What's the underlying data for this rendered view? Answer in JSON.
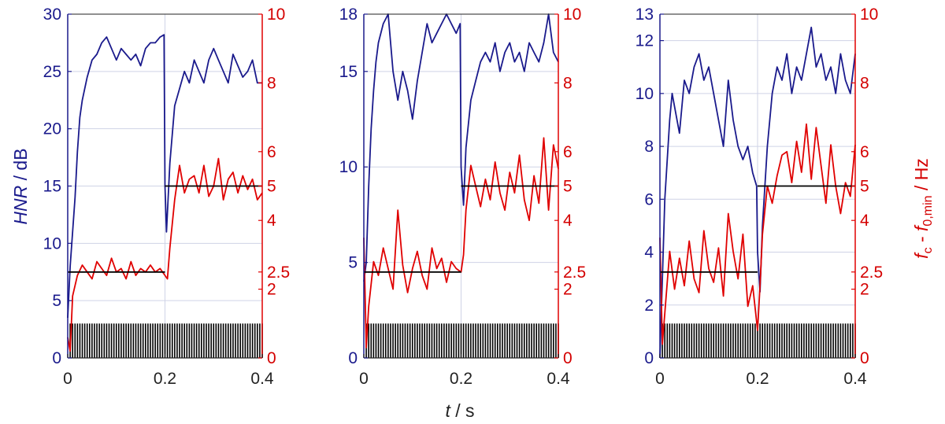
{
  "colors": {
    "hnr": "#1a1a8c",
    "fc": "#e00000",
    "target": "#000000",
    "pulse": "#000000",
    "grid": "#cfd3e6"
  },
  "labels": {
    "ylabel_left": "HNR / dB",
    "ylabel_left_italic": "HNR",
    "ylabel_left_unit": " / dB",
    "ylabel_right_f": "f",
    "ylabel_right_c": "c",
    "ylabel_right_dash": " - ",
    "ylabel_right_f0": "f",
    "ylabel_right_sub": "0,min",
    "ylabel_right_unit": " / Hz",
    "xlabel_italic": "t",
    "xlabel_unit": " / s"
  },
  "chart_data": [
    {
      "type": "line",
      "xlim": [
        0,
        0.4
      ],
      "xticks": [
        "0",
        "0.2",
        "0.4"
      ],
      "ylim_left": [
        0,
        30
      ],
      "yticks_left": [
        "0",
        "5",
        "10",
        "15",
        "20",
        "25",
        "30"
      ],
      "ylim_right": [
        0,
        10
      ],
      "yticks_right": [
        "0",
        "2",
        "2.5",
        "4",
        "5",
        "6",
        "8",
        "10"
      ],
      "grid": true,
      "series": [
        {
          "axis": "left",
          "x": [
            0,
            0.005,
            0.01,
            0.015,
            0.02,
            0.025,
            0.03,
            0.04,
            0.05,
            0.06,
            0.07,
            0.08,
            0.09,
            0.1,
            0.11,
            0.12,
            0.13,
            0.14,
            0.15,
            0.16,
            0.17,
            0.18,
            0.19,
            0.198,
            0.2,
            0.203,
            0.21,
            0.22,
            0.23,
            0.24,
            0.25,
            0.26,
            0.27,
            0.28,
            0.29,
            0.3,
            0.31,
            0.32,
            0.33,
            0.34,
            0.35,
            0.36,
            0.37,
            0.38,
            0.39,
            0.4
          ],
          "y": [
            3.5,
            8,
            11,
            14,
            18,
            21,
            22.5,
            24.5,
            26,
            26.5,
            27.5,
            28,
            27,
            26,
            27,
            26.5,
            26,
            26.5,
            25.5,
            27,
            27.5,
            27.5,
            28,
            28.2,
            15,
            11,
            17,
            22,
            23.5,
            25,
            24,
            26,
            25,
            24,
            26,
            27,
            26,
            25,
            24,
            26.5,
            25.5,
            24.5,
            25,
            26,
            24,
            24
          ]
        },
        {
          "axis": "right",
          "x": [
            0,
            0.005,
            0.01,
            0.02,
            0.03,
            0.04,
            0.05,
            0.06,
            0.07,
            0.08,
            0.09,
            0.1,
            0.11,
            0.12,
            0.13,
            0.14,
            0.15,
            0.16,
            0.17,
            0.18,
            0.19,
            0.2,
            0.205,
            0.21,
            0.22,
            0.23,
            0.24,
            0.25,
            0.26,
            0.27,
            0.28,
            0.29,
            0.3,
            0.31,
            0.32,
            0.33,
            0.34,
            0.35,
            0.36,
            0.37,
            0.38,
            0.39,
            0.4
          ],
          "y": [
            0.6,
            0.2,
            1.8,
            2.4,
            2.7,
            2.5,
            2.3,
            2.8,
            2.6,
            2.4,
            2.9,
            2.5,
            2.6,
            2.3,
            2.8,
            2.4,
            2.6,
            2.5,
            2.7,
            2.5,
            2.6,
            2.4,
            2.3,
            3.2,
            4.6,
            5.6,
            4.8,
            5.2,
            5.3,
            4.8,
            5.6,
            4.7,
            5.0,
            5.8,
            4.6,
            5.2,
            5.4,
            4.8,
            5.3,
            4.9,
            5.2,
            4.6,
            4.8
          ]
        },
        {
          "axis": "right",
          "x": [
            0.0,
            0.2
          ],
          "y": [
            2.5,
            2.5
          ]
        },
        {
          "axis": "right",
          "x": [
            0.2,
            0.4
          ],
          "y": [
            5,
            5
          ]
        }
      ],
      "pulse_train": {
        "x_start": 0.005,
        "x_end": 0.4,
        "period": 0.005,
        "height_right": 1
      }
    },
    {
      "type": "line",
      "xlim": [
        0,
        0.4
      ],
      "xticks": [
        "0",
        "0.2",
        "0.4"
      ],
      "ylim_left": [
        0,
        18
      ],
      "yticks_left": [
        "0",
        "5",
        "10",
        "15",
        "18"
      ],
      "ylim_right": [
        0,
        10
      ],
      "yticks_right": [
        "0",
        "2",
        "2.5",
        "4",
        "5",
        "6",
        "8",
        "10"
      ],
      "grid": true,
      "series": [
        {
          "axis": "left",
          "x": [
            0,
            0.005,
            0.01,
            0.015,
            0.02,
            0.025,
            0.03,
            0.04,
            0.05,
            0.06,
            0.07,
            0.08,
            0.09,
            0.1,
            0.11,
            0.12,
            0.13,
            0.14,
            0.15,
            0.16,
            0.17,
            0.18,
            0.19,
            0.198,
            0.2,
            0.205,
            0.21,
            0.22,
            0.23,
            0.24,
            0.25,
            0.26,
            0.27,
            0.28,
            0.29,
            0.3,
            0.31,
            0.32,
            0.33,
            0.34,
            0.35,
            0.36,
            0.37,
            0.38,
            0.39,
            0.4
          ],
          "y": [
            4,
            5,
            9,
            12,
            14,
            15.5,
            16.5,
            17.5,
            18,
            15,
            13.5,
            15,
            14,
            12.5,
            14.5,
            16,
            17.5,
            16.5,
            17,
            17.5,
            18,
            17.5,
            17,
            17.5,
            10,
            8,
            11,
            13.5,
            14.5,
            15.5,
            16,
            15.5,
            16.5,
            15,
            16,
            16.5,
            15.5,
            16,
            15,
            16.5,
            16,
            15.5,
            16.5,
            18,
            16,
            15.5
          ]
        },
        {
          "axis": "right",
          "x": [
            0,
            0.005,
            0.01,
            0.02,
            0.03,
            0.04,
            0.05,
            0.06,
            0.07,
            0.08,
            0.09,
            0.1,
            0.11,
            0.12,
            0.13,
            0.14,
            0.15,
            0.16,
            0.17,
            0.18,
            0.19,
            0.2,
            0.205,
            0.21,
            0.22,
            0.23,
            0.24,
            0.25,
            0.26,
            0.27,
            0.28,
            0.29,
            0.3,
            0.31,
            0.32,
            0.33,
            0.34,
            0.35,
            0.36,
            0.37,
            0.38,
            0.39,
            0.4
          ],
          "y": [
            3.5,
            0.3,
            1.5,
            2.8,
            2.4,
            3.2,
            2.6,
            2.0,
            4.3,
            2.7,
            1.9,
            2.6,
            3.1,
            2.4,
            2.0,
            3.2,
            2.6,
            2.9,
            2.2,
            2.8,
            2.6,
            2.5,
            3.0,
            4.3,
            5.6,
            5.0,
            4.4,
            5.2,
            4.6,
            5.7,
            4.8,
            4.3,
            5.4,
            4.8,
            5.9,
            4.6,
            4.0,
            5.3,
            4.5,
            6.4,
            4.3,
            6.2,
            5.5
          ]
        },
        {
          "axis": "right",
          "x": [
            0.0,
            0.2
          ],
          "y": [
            2.5,
            2.5
          ]
        },
        {
          "axis": "right",
          "x": [
            0.2,
            0.4
          ],
          "y": [
            5,
            5
          ]
        }
      ],
      "pulse_train": {
        "x_start": 0.005,
        "x_end": 0.4,
        "period": 0.005,
        "height_right": 1
      }
    },
    {
      "type": "line",
      "xlim": [
        0,
        0.4
      ],
      "xticks": [
        "0",
        "0.2",
        "0.4"
      ],
      "ylim_left": [
        0,
        13
      ],
      "yticks_left": [
        "0",
        "2",
        "4",
        "6",
        "8",
        "10",
        "12",
        "13"
      ],
      "ylim_right": [
        0,
        10
      ],
      "yticks_right": [
        "0",
        "2",
        "2.5",
        "4",
        "5",
        "6",
        "8",
        "10"
      ],
      "grid": true,
      "series": [
        {
          "axis": "left",
          "x": [
            0,
            0.005,
            0.01,
            0.015,
            0.02,
            0.025,
            0.03,
            0.04,
            0.05,
            0.06,
            0.07,
            0.08,
            0.09,
            0.1,
            0.11,
            0.12,
            0.13,
            0.14,
            0.15,
            0.16,
            0.17,
            0.18,
            0.19,
            0.198,
            0.2,
            0.205,
            0.21,
            0.22,
            0.23,
            0.24,
            0.25,
            0.26,
            0.27,
            0.28,
            0.29,
            0.3,
            0.31,
            0.32,
            0.33,
            0.34,
            0.35,
            0.36,
            0.37,
            0.38,
            0.39,
            0.4
          ],
          "y": [
            0,
            3,
            6,
            7.5,
            9,
            10,
            9.5,
            8.5,
            10.5,
            10,
            11,
            11.5,
            10.5,
            11,
            10,
            9,
            8,
            10.5,
            9,
            8,
            7.5,
            8,
            7,
            6.5,
            4,
            2.5,
            5,
            8,
            10,
            11,
            10.5,
            11.5,
            10,
            11,
            10.5,
            11.5,
            12.5,
            11,
            11.5,
            10.5,
            11,
            10,
            11.5,
            10.5,
            10,
            11.5
          ]
        },
        {
          "axis": "right",
          "x": [
            0,
            0.005,
            0.01,
            0.02,
            0.03,
            0.04,
            0.05,
            0.06,
            0.07,
            0.08,
            0.09,
            0.1,
            0.11,
            0.12,
            0.13,
            0.14,
            0.15,
            0.16,
            0.17,
            0.18,
            0.19,
            0.2,
            0.205,
            0.21,
            0.22,
            0.23,
            0.24,
            0.25,
            0.26,
            0.27,
            0.28,
            0.29,
            0.3,
            0.31,
            0.32,
            0.33,
            0.34,
            0.35,
            0.36,
            0.37,
            0.38,
            0.39,
            0.4
          ],
          "y": [
            3.5,
            0.4,
            1.3,
            3.1,
            2.0,
            2.9,
            2.1,
            3.4,
            2.3,
            1.9,
            3.7,
            2.6,
            2.2,
            3.2,
            1.8,
            4.2,
            3.1,
            2.3,
            3.6,
            1.5,
            2.1,
            0.8,
            2.1,
            3.6,
            5.0,
            4.5,
            5.3,
            5.9,
            6.0,
            5.1,
            6.3,
            5.4,
            6.8,
            5.2,
            6.7,
            5.6,
            4.5,
            6.2,
            5.0,
            4.2,
            5.1,
            4.7,
            6.2
          ]
        },
        {
          "axis": "right",
          "x": [
            0.0,
            0.2
          ],
          "y": [
            2.5,
            2.5
          ]
        },
        {
          "axis": "right",
          "x": [
            0.2,
            0.4
          ],
          "y": [
            5,
            5
          ]
        }
      ],
      "pulse_train": {
        "x_start": 0.005,
        "x_end": 0.4,
        "period": 0.005,
        "height_right": 1
      }
    }
  ]
}
